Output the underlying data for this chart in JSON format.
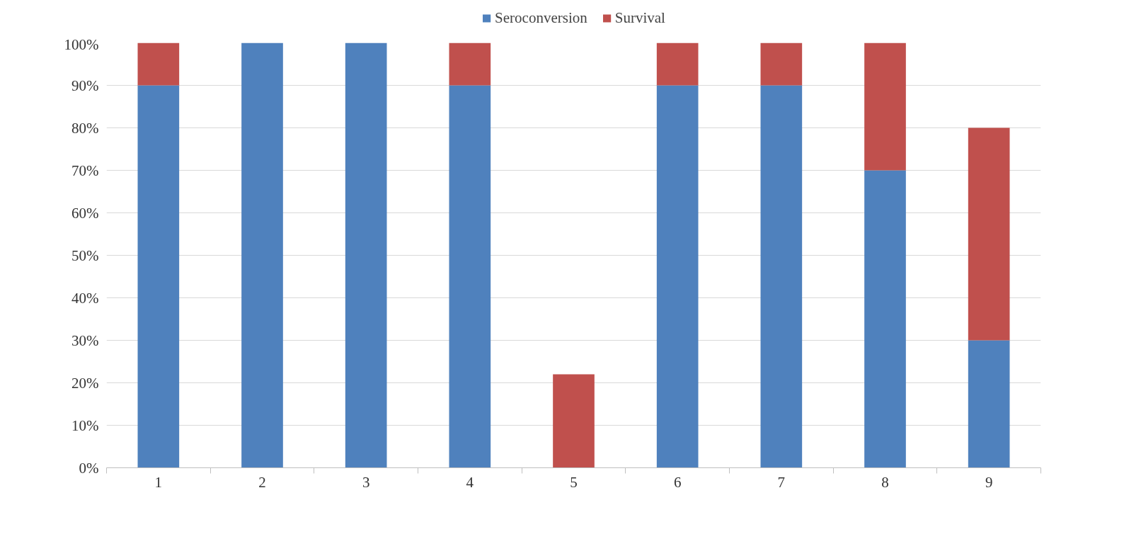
{
  "chart_data": {
    "type": "bar",
    "stacked": true,
    "categories": [
      "1",
      "2",
      "3",
      "4",
      "5",
      "6",
      "7",
      "8",
      "9"
    ],
    "series": [
      {
        "name": "Seroconversion",
        "color": "#4f81bd",
        "values": [
          90,
          100,
          100,
          90,
          0,
          90,
          90,
          70,
          30
        ]
      },
      {
        "name": "Survival",
        "color": "#c0504d",
        "values": [
          10,
          0,
          0,
          10,
          22,
          10,
          10,
          30,
          50
        ]
      }
    ],
    "ylim": [
      0,
      100
    ],
    "yticks": [
      {
        "value": 0,
        "label": "0%"
      },
      {
        "value": 10,
        "label": "10%"
      },
      {
        "value": 20,
        "label": "20%"
      },
      {
        "value": 30,
        "label": "30%"
      },
      {
        "value": 40,
        "label": "40%"
      },
      {
        "value": 50,
        "label": "50%"
      },
      {
        "value": 60,
        "label": "60%"
      },
      {
        "value": 70,
        "label": "70%"
      },
      {
        "value": 80,
        "label": "80%"
      },
      {
        "value": 90,
        "label": "90%"
      },
      {
        "value": 100,
        "label": "100%"
      }
    ],
    "grid": "y",
    "legend": "top"
  }
}
